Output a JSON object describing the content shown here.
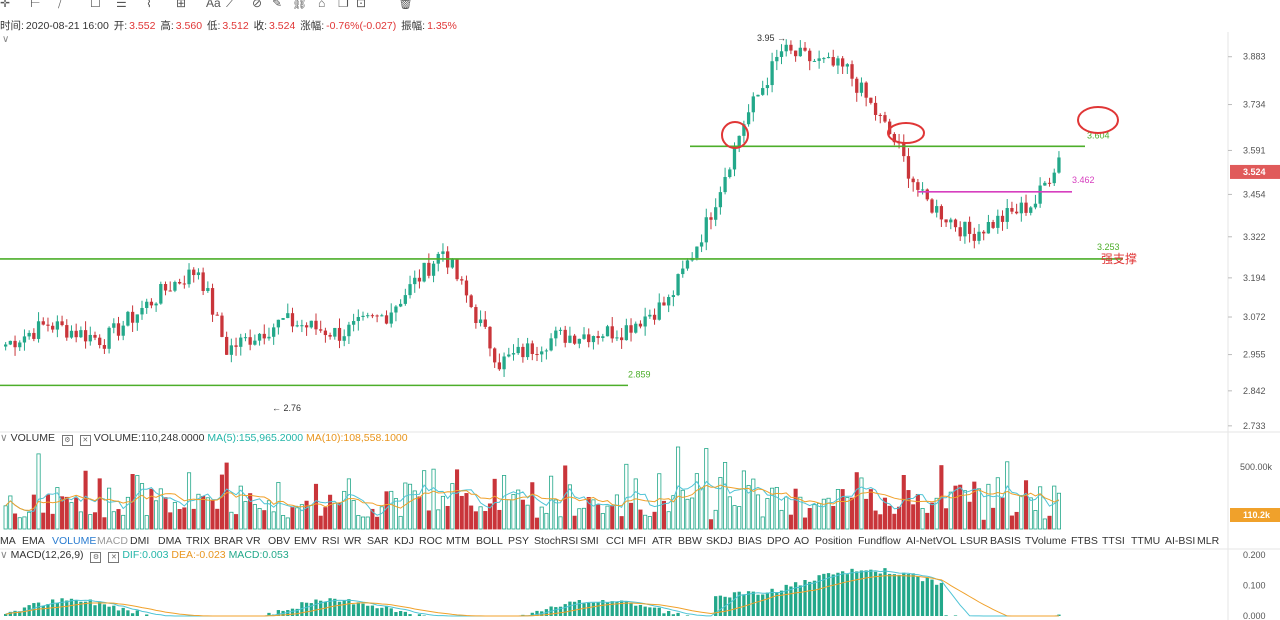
{
  "toolbar": {
    "icons": [
      "crosshair-icon",
      "horizontal-line-icon",
      "trend-lines-icon",
      "rectangle-icon",
      "parallel-lines-icon",
      "wave-icon",
      "grid-icon",
      "text-icon",
      "measure-icon",
      "magnet-icon",
      "brush-icon",
      "link-icon",
      "lock-icon",
      "copy-icon",
      "hide-icon",
      "trash-icon"
    ],
    "text_label": "Aa"
  },
  "info": {
    "time_label": "时间:",
    "time": "2020-08-21 16:00",
    "open_label": "开:",
    "open": "3.552",
    "high_label": "高:",
    "high": "3.560",
    "low_label": "低:",
    "low": "3.512",
    "close_label": "收:",
    "close": "3.524",
    "change_label": "涨幅:",
    "change": "-0.76%(-0.027)",
    "amp_label": "振幅:",
    "amp": "1.35%"
  },
  "chart_data": [
    {
      "type": "candlestick",
      "y_ticks": [
        "3.883",
        "3.734",
        "3.591",
        "3.454",
        "3.322",
        "3.194",
        "3.072",
        "2.955",
        "2.842",
        "2.733"
      ],
      "ylim": [
        2.72,
        3.96
      ],
      "current_price": "3.524",
      "annotations": {
        "high_marker": "3.95 →",
        "low_marker": "← 2.76",
        "support_label": "2.859",
        "strong_support_price": "3.253",
        "strong_support_text": "强支撑",
        "resistance_label": "3.604",
        "pink_label": "3.462"
      },
      "levels": [
        {
          "price": 3.253,
          "color": "#4cae2a"
        },
        {
          "price": 2.859,
          "color": "#4cae2a"
        },
        {
          "price": 3.604,
          "color": "#4cae2a"
        },
        {
          "price": 3.462,
          "color": "#d63fbf"
        }
      ],
      "segments": [
        {
          "n": 10,
          "to": 3.05
        },
        {
          "n": 12,
          "to": 3.0
        },
        {
          "n": 14,
          "to": 3.17
        },
        {
          "n": 6,
          "to": 3.22
        },
        {
          "n": 6,
          "to": 2.97
        },
        {
          "n": 12,
          "to": 3.06
        },
        {
          "n": 12,
          "to": 3.02
        },
        {
          "n": 10,
          "to": 3.08
        },
        {
          "n": 12,
          "to": 3.28
        },
        {
          "n": 12,
          "to": 2.93
        },
        {
          "n": 12,
          "to": 3.01
        },
        {
          "n": 14,
          "to": 3.03
        },
        {
          "n": 10,
          "to": 3.12
        },
        {
          "n": 8,
          "to": 3.36
        },
        {
          "n": 8,
          "to": 3.68
        },
        {
          "n": 8,
          "to": 3.9
        },
        {
          "n": 14,
          "to": 3.84
        },
        {
          "n": 10,
          "to": 3.62
        },
        {
          "n": 6,
          "to": 3.44
        },
        {
          "n": 10,
          "to": 3.33
        },
        {
          "n": 14,
          "to": 3.43
        },
        {
          "n": 5,
          "to": 3.57
        }
      ]
    },
    {
      "type": "bar",
      "name": "VOLUME",
      "legend": {
        "name": "VOLUME",
        "value_text": "VOLUME:110,248.0000",
        "ma5_text": "MA(5):155,965.2000",
        "ma10_text": "MA(10):108,558.1000"
      },
      "y_ticks": [
        "500.00k"
      ],
      "current_value": "110.2k",
      "ylim": [
        0,
        620000
      ]
    },
    {
      "type": "bar",
      "name": "MACD",
      "legend": {
        "name": "MACD(12,26,9)",
        "dif_text": "DIF:0.003",
        "dea_text": "DEA:-0.023",
        "macd_text": "MACD:0.053"
      },
      "y_ticks": [
        "0.200",
        "0.100",
        "0.000"
      ],
      "ylim": [
        0,
        0.2
      ]
    }
  ],
  "indicators": [
    "MA",
    "EMA",
    "VOLUME",
    "MACD",
    "DMI",
    "DMA",
    "TRIX",
    "BRAR",
    "VR",
    "OBV",
    "EMV",
    "RSI",
    "WR",
    "SAR",
    "KDJ",
    "ROC",
    "MTM",
    "BOLL",
    "PSY",
    "StochRSI",
    "SMI",
    "CCI",
    "MFI",
    "ATR",
    "BBW",
    "SKDJ",
    "BIAS",
    "DPO",
    "AO",
    "Position",
    "Fundflow",
    "AI-NetVOL",
    "LSUR",
    "BASIS",
    "TVolume",
    "FTBS",
    "TTSI",
    "TTMU",
    "AI-BSI",
    "MLR"
  ],
  "indicator_active": "VOLUME",
  "indicator_muted": "MACD",
  "colors": {
    "up": "#23a88a",
    "down": "#c9353a",
    "ma5": "#4fc4d6",
    "ma10": "#f0a12b",
    "level": "#4cae2a",
    "pink": "#d63fbf",
    "circle": "#e03636",
    "price_tag": "#e05a5a",
    "vol_tag": "#f0a12b"
  }
}
